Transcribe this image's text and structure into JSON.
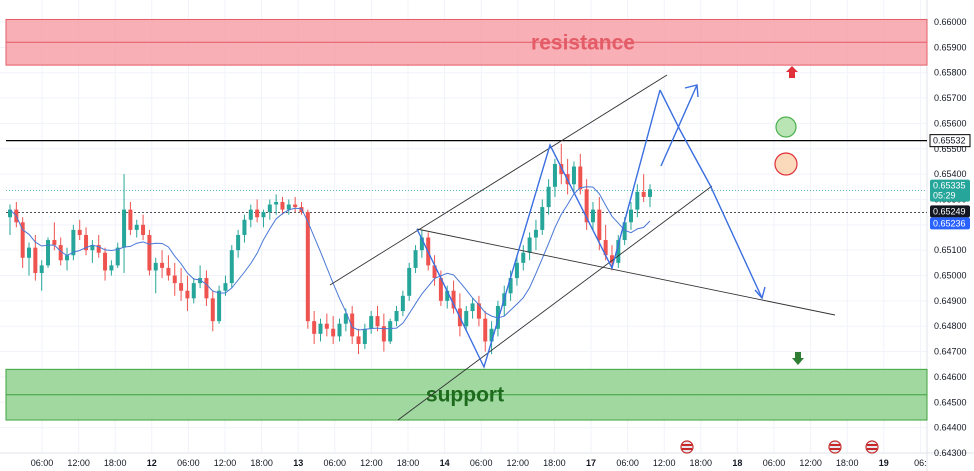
{
  "chart_data": {
    "type": "candlestick",
    "price_axis": {
      "ticks": [
        "0.66000",
        "0.65900",
        "0.65800",
        "0.65700",
        "0.65600",
        "0.65500",
        "0.65400",
        "0.65300",
        "0.65200",
        "0.65100",
        "0.65000",
        "0.64900",
        "0.64800",
        "0.64700",
        "0.64600",
        "0.64500",
        "0.64400",
        "0.64300"
      ],
      "range": [
        0.643,
        0.6602
      ]
    },
    "time_axis": {
      "ticks": [
        "06:00",
        "12:00",
        "18:00",
        "12",
        "06:00",
        "12:00",
        "18:00",
        "13",
        "06:00",
        "12:00",
        "18:00",
        "14",
        "06:00",
        "12:00",
        "18:00",
        "17",
        "06:00",
        "12:00",
        "18:00",
        "18",
        "06:00",
        "12:00",
        "18:00",
        "19",
        "06:"
      ]
    },
    "zones": {
      "resistance": {
        "label": "resistance",
        "low": 0.6583,
        "high": 0.6601,
        "mid": 0.6592,
        "color": "#f28b93"
      },
      "support": {
        "label": "support",
        "low": 0.6443,
        "high": 0.6463,
        "mid": 0.6453,
        "color": "#7ccc7c"
      }
    },
    "horizontal_line": {
      "value": 0.65532,
      "label": "0.65532"
    },
    "price_tags": [
      {
        "value": 0.65335,
        "label": "0.65335",
        "countdown": "05:29",
        "color": "#26a69a"
      },
      {
        "value": 0.65249,
        "label": "0.65249",
        "color": "#131722"
      },
      {
        "value": 0.65236,
        "label": "0.65236",
        "color": "#2962ff"
      }
    ],
    "candles_ohlc": [
      [
        0.6523,
        0.6528,
        0.6516,
        0.6526
      ],
      [
        0.6526,
        0.6529,
        0.6519,
        0.6521
      ],
      [
        0.6521,
        0.6523,
        0.6503,
        0.6507
      ],
      [
        0.6507,
        0.6513,
        0.65,
        0.6511
      ],
      [
        0.6511,
        0.6516,
        0.6498,
        0.6501
      ],
      [
        0.6501,
        0.6506,
        0.6494,
        0.6504
      ],
      [
        0.6504,
        0.6515,
        0.6503,
        0.6514
      ],
      [
        0.6514,
        0.6521,
        0.651,
        0.6512
      ],
      [
        0.6512,
        0.6515,
        0.6504,
        0.6506
      ],
      [
        0.6506,
        0.6511,
        0.6502,
        0.6508
      ],
      [
        0.6508,
        0.652,
        0.6506,
        0.6518
      ],
      [
        0.6518,
        0.6522,
        0.6514,
        0.6516
      ],
      [
        0.6516,
        0.6519,
        0.6508,
        0.651
      ],
      [
        0.651,
        0.6514,
        0.6505,
        0.6512
      ],
      [
        0.6512,
        0.6516,
        0.6507,
        0.6509
      ],
      [
        0.6509,
        0.6511,
        0.6498,
        0.6502
      ],
      [
        0.6502,
        0.6506,
        0.65,
        0.6504
      ],
      [
        0.6504,
        0.6513,
        0.6503,
        0.6511
      ],
      [
        0.6511,
        0.654,
        0.6501,
        0.6526
      ],
      [
        0.6526,
        0.6529,
        0.6516,
        0.6518
      ],
      [
        0.6518,
        0.6522,
        0.6515,
        0.652
      ],
      [
        0.652,
        0.6524,
        0.6514,
        0.6516
      ],
      [
        0.6516,
        0.6518,
        0.65,
        0.6502
      ],
      [
        0.6502,
        0.6507,
        0.6493,
        0.6505
      ],
      [
        0.6505,
        0.651,
        0.6499,
        0.6503
      ],
      [
        0.6503,
        0.6508,
        0.6498,
        0.65
      ],
      [
        0.65,
        0.6505,
        0.6492,
        0.6497
      ],
      [
        0.6497,
        0.6503,
        0.649,
        0.6494
      ],
      [
        0.6494,
        0.65,
        0.6486,
        0.6491
      ],
      [
        0.6491,
        0.6499,
        0.6489,
        0.6497
      ],
      [
        0.6497,
        0.6504,
        0.6495,
        0.6499
      ],
      [
        0.6499,
        0.6502,
        0.6488,
        0.6491
      ],
      [
        0.6491,
        0.6494,
        0.6478,
        0.6482
      ],
      [
        0.6482,
        0.6496,
        0.6481,
        0.6494
      ],
      [
        0.6494,
        0.65,
        0.6492,
        0.6497
      ],
      [
        0.6497,
        0.6512,
        0.6495,
        0.651
      ],
      [
        0.651,
        0.6518,
        0.6507,
        0.6516
      ],
      [
        0.6516,
        0.6524,
        0.6513,
        0.6522
      ],
      [
        0.6522,
        0.6528,
        0.6519,
        0.6526
      ],
      [
        0.6526,
        0.653,
        0.6521,
        0.6523
      ],
      [
        0.6523,
        0.6526,
        0.6519,
        0.6525
      ],
      [
        0.6525,
        0.653,
        0.6522,
        0.6528
      ],
      [
        0.6528,
        0.6532,
        0.6524,
        0.6529
      ],
      [
        0.6529,
        0.6531,
        0.6524,
        0.6526
      ],
      [
        0.6526,
        0.653,
        0.6524,
        0.6528
      ],
      [
        0.6528,
        0.6531,
        0.6525,
        0.6527
      ],
      [
        0.6527,
        0.6529,
        0.6524,
        0.6525
      ],
      [
        0.6525,
        0.6526,
        0.6479,
        0.6482
      ],
      [
        0.6482,
        0.6486,
        0.6473,
        0.6477
      ],
      [
        0.6477,
        0.6483,
        0.6474,
        0.6481
      ],
      [
        0.6481,
        0.6485,
        0.6476,
        0.6479
      ],
      [
        0.6479,
        0.6484,
        0.6473,
        0.6476
      ],
      [
        0.6476,
        0.6483,
        0.6474,
        0.6481
      ],
      [
        0.6481,
        0.6487,
        0.6478,
        0.6485
      ],
      [
        0.6485,
        0.6488,
        0.6473,
        0.6476
      ],
      [
        0.6476,
        0.6479,
        0.6469,
        0.6473
      ],
      [
        0.6473,
        0.6481,
        0.6471,
        0.6479
      ],
      [
        0.6479,
        0.6486,
        0.6477,
        0.6484
      ],
      [
        0.6484,
        0.6488,
        0.6478,
        0.648
      ],
      [
        0.648,
        0.6485,
        0.647,
        0.6474
      ],
      [
        0.6474,
        0.6483,
        0.6473,
        0.6482
      ],
      [
        0.6482,
        0.6488,
        0.648,
        0.6486
      ],
      [
        0.6486,
        0.6494,
        0.6484,
        0.6492
      ],
      [
        0.6492,
        0.6505,
        0.649,
        0.6503
      ],
      [
        0.6503,
        0.6512,
        0.6501,
        0.651
      ],
      [
        0.651,
        0.6518,
        0.6507,
        0.6515
      ],
      [
        0.6515,
        0.6517,
        0.6502,
        0.6504
      ],
      [
        0.6504,
        0.6508,
        0.6496,
        0.6499
      ],
      [
        0.6499,
        0.6502,
        0.6488,
        0.649
      ],
      [
        0.649,
        0.6496,
        0.6487,
        0.6494
      ],
      [
        0.6494,
        0.6498,
        0.6485,
        0.6487
      ],
      [
        0.6487,
        0.6493,
        0.6476,
        0.648
      ],
      [
        0.648,
        0.6488,
        0.6478,
        0.6486
      ],
      [
        0.6486,
        0.6491,
        0.6483,
        0.6489
      ],
      [
        0.6489,
        0.6492,
        0.648,
        0.6483
      ],
      [
        0.6483,
        0.6486,
        0.647,
        0.6474
      ],
      [
        0.6474,
        0.6482,
        0.6469,
        0.6479
      ],
      [
        0.6479,
        0.649,
        0.6476,
        0.6488
      ],
      [
        0.6488,
        0.6496,
        0.6484,
        0.6493
      ],
      [
        0.6493,
        0.6502,
        0.649,
        0.6499
      ],
      [
        0.6499,
        0.6508,
        0.6496,
        0.6505
      ],
      [
        0.6505,
        0.6512,
        0.6502,
        0.6509
      ],
      [
        0.6509,
        0.6517,
        0.6506,
        0.6515
      ],
      [
        0.6515,
        0.6522,
        0.651,
        0.6518
      ],
      [
        0.6518,
        0.653,
        0.6516,
        0.6527
      ],
      [
        0.6527,
        0.6538,
        0.6524,
        0.6535
      ],
      [
        0.6535,
        0.6546,
        0.6531,
        0.6544
      ],
      [
        0.6544,
        0.6552,
        0.6536,
        0.654
      ],
      [
        0.654,
        0.6546,
        0.6532,
        0.6536
      ],
      [
        0.6536,
        0.6545,
        0.6533,
        0.6543
      ],
      [
        0.6543,
        0.6548,
        0.6532,
        0.6534
      ],
      [
        0.6534,
        0.6538,
        0.6518,
        0.6521
      ],
      [
        0.6521,
        0.6529,
        0.6518,
        0.6526
      ],
      [
        0.6526,
        0.6531,
        0.651,
        0.6514
      ],
      [
        0.6514,
        0.652,
        0.6506,
        0.6508
      ],
      [
        0.6508,
        0.6512,
        0.6502,
        0.6505
      ],
      [
        0.6505,
        0.6516,
        0.6503,
        0.6514
      ],
      [
        0.6514,
        0.6523,
        0.6512,
        0.6521
      ],
      [
        0.6521,
        0.6529,
        0.6518,
        0.6526
      ],
      [
        0.6526,
        0.6536,
        0.6523,
        0.6533
      ],
      [
        0.6533,
        0.654,
        0.6529,
        0.6531
      ],
      [
        0.6531,
        0.6536,
        0.6527,
        0.6534
      ]
    ]
  }
}
